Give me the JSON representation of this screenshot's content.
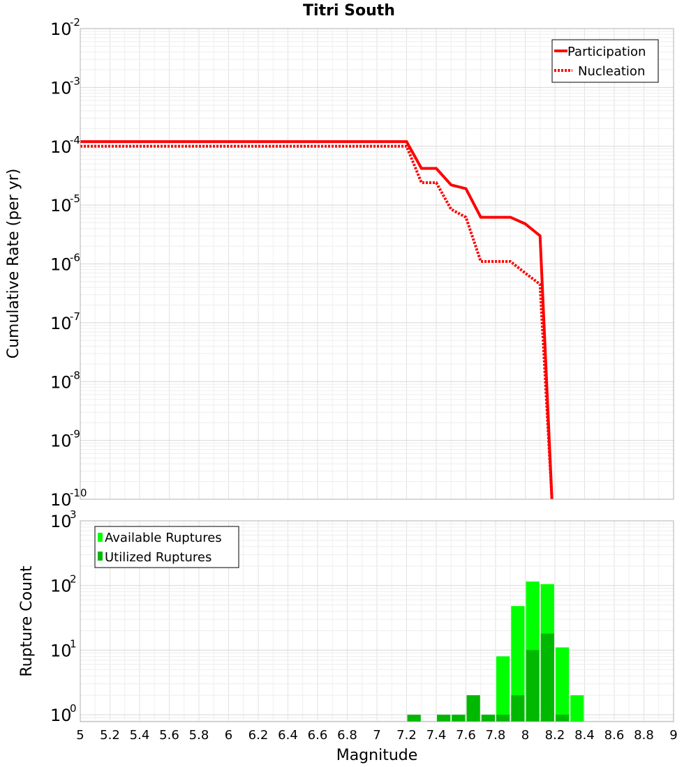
{
  "chart_data": [
    {
      "type": "line",
      "title": "Titri South",
      "ylabel": "Cumulative Rate (per yr)",
      "y_scale": "log",
      "ylim": [
        1e-10,
        0.01
      ],
      "xlim": [
        5,
        9
      ],
      "grid": true,
      "legend_placement": "top-right",
      "y_tick_labels": [
        {
          "base": "10",
          "exp": "-2"
        },
        {
          "base": "10",
          "exp": "-3"
        },
        {
          "base": "10",
          "exp": "-4"
        },
        {
          "base": "10",
          "exp": "-5"
        },
        {
          "base": "10",
          "exp": "-6"
        },
        {
          "base": "10",
          "exp": "-7"
        },
        {
          "base": "10",
          "exp": "-8"
        },
        {
          "base": "10",
          "exp": "-9"
        },
        {
          "base": "10",
          "exp": "-10"
        }
      ],
      "series": [
        {
          "name": "Participation",
          "style": "solid",
          "color": "#ff0000",
          "x": [
            5.0,
            7.2,
            7.3,
            7.4,
            7.5,
            7.6,
            7.7,
            7.8,
            7.9,
            8.0,
            8.1,
            8.18
          ],
          "y": [
            0.00012,
            0.00012,
            4.2e-05,
            4.2e-05,
            2.2e-05,
            1.9e-05,
            6.2e-06,
            6.2e-06,
            6.2e-06,
            4.8e-06,
            3e-06,
            1e-10
          ]
        },
        {
          "name": "Nucleation",
          "style": "dotted",
          "color": "#ff0000",
          "x": [
            5.0,
            7.2,
            7.3,
            7.4,
            7.5,
            7.6,
            7.7,
            7.8,
            7.9,
            8.0,
            8.1,
            8.18
          ],
          "y": [
            0.0001,
            0.0001,
            2.4e-05,
            2.4e-05,
            8.5e-06,
            6.2e-06,
            1.1e-06,
            1.1e-06,
            1.1e-06,
            7e-07,
            4.5e-07,
            1e-10
          ]
        }
      ]
    },
    {
      "type": "bar",
      "xlabel": "Magnitude",
      "ylabel": "Rupture Count",
      "y_scale": "log",
      "ylim": [
        0.78,
        1000
      ],
      "xlim": [
        5,
        9
      ],
      "grid": true,
      "legend_placement": "top-left",
      "x_tick_labels": [
        "5",
        "5.2",
        "5.4",
        "5.6",
        "5.8",
        "6",
        "6.2",
        "6.4",
        "6.6",
        "6.8",
        "7",
        "7.2",
        "7.4",
        "7.6",
        "7.8",
        "8",
        "8.2",
        "8.4",
        "8.6",
        "8.8",
        "9"
      ],
      "y_tick_labels": [
        {
          "base": "10",
          "exp": "3"
        },
        {
          "base": "10",
          "exp": "2"
        },
        {
          "base": "10",
          "exp": "1"
        },
        {
          "base": "10",
          "exp": "0"
        }
      ],
      "categories": [
        7.25,
        7.35,
        7.45,
        7.55,
        7.65,
        7.75,
        7.85,
        7.95,
        8.05,
        8.15,
        8.25,
        8.35
      ],
      "series": [
        {
          "name": "Available Ruptures",
          "color": "#00ff00",
          "values": [
            1,
            0,
            1,
            1,
            2,
            1,
            8,
            48,
            115,
            105,
            11,
            2
          ]
        },
        {
          "name": "Utilized Ruptures",
          "color": "#00b800",
          "values": [
            1,
            0,
            1,
            1,
            2,
            1,
            1,
            2,
            10,
            18,
            1,
            0
          ]
        }
      ]
    }
  ]
}
